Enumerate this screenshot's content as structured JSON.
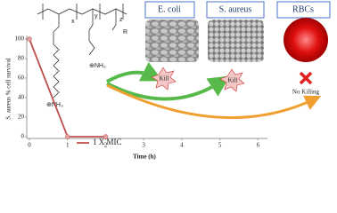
{
  "chart_data": {
    "type": "line",
    "y_label": "S. aureus % cell survival",
    "x_label": "Time (h)",
    "x": [
      0,
      1,
      2
    ],
    "series": [
      {
        "name": "1 X MIC",
        "color": "#c0504d",
        "values": [
          100,
          0,
          0
        ]
      }
    ],
    "xlim": [
      0,
      6.25
    ],
    "ylim": [
      0,
      100
    ],
    "xticks": [
      0,
      1,
      2,
      3,
      4,
      5,
      6
    ],
    "yticks": [
      0,
      20,
      40,
      60,
      80,
      100
    ],
    "grid": false
  },
  "labels": {
    "ecoli": "E. coli",
    "saureus": "S. aureus",
    "rbcs": "RBCs",
    "kill1": "Kill",
    "kill2": "Kill",
    "nokill": "No Killing",
    "x": "x",
    "y": "y",
    "z": "z",
    "r": "R",
    "nh2": "⊕NH₂",
    "nh3": "⊕NH₃"
  }
}
